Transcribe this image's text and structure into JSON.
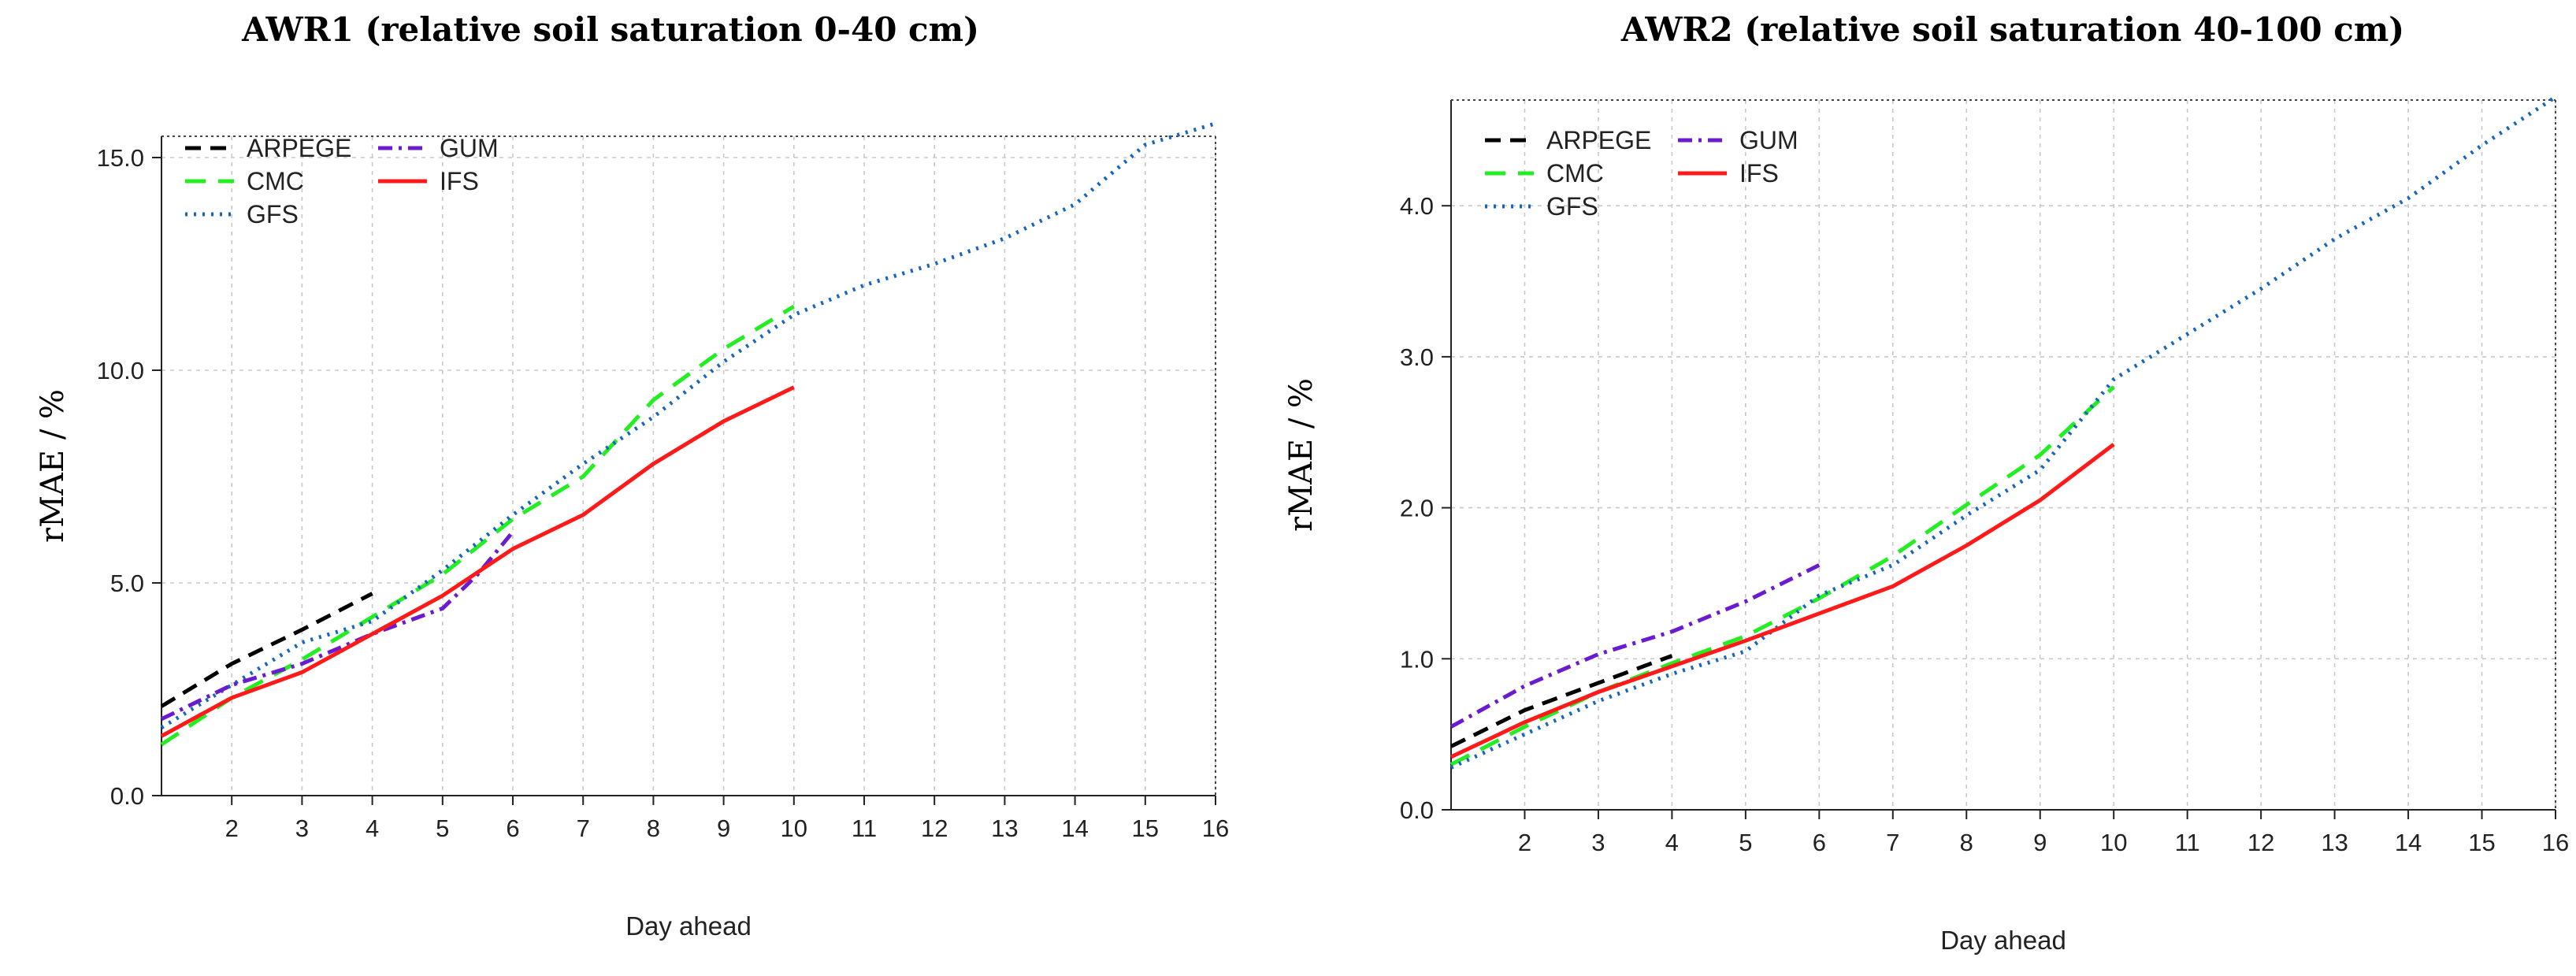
{
  "chart_data": [
    {
      "type": "line",
      "title": "AWR1 (relative soil saturation 0-40 cm)",
      "xlabel": "Day ahead",
      "ylabel": "rMAE / %",
      "xlim": [
        1,
        16
      ],
      "ylim": [
        0,
        15.5
      ],
      "xticks": [
        "2",
        "3",
        "4",
        "5",
        "6",
        "7",
        "8",
        "9",
        "10",
        "11",
        "12",
        "13",
        "14",
        "15",
        "16"
      ],
      "yticks": [
        "0.0",
        "5.0",
        "10.0",
        "15.0"
      ],
      "legend_position": "top-left",
      "series": [
        {
          "name": "ARPEGE",
          "color": "#000000",
          "dash": "20 12",
          "x": [
            1,
            2,
            3,
            4
          ],
          "values": [
            2.1,
            3.1,
            3.9,
            4.75
          ]
        },
        {
          "name": "CMC",
          "color": "#22ee22",
          "dash": "26 16",
          "x": [
            1,
            2,
            3,
            4,
            5,
            6,
            7,
            8,
            9,
            10
          ],
          "values": [
            1.2,
            2.3,
            3.2,
            4.2,
            5.2,
            6.5,
            7.5,
            9.3,
            10.5,
            11.5
          ]
        },
        {
          "name": "GFS",
          "color": "#1565c0",
          "dash": "3 8",
          "x": [
            1,
            2,
            3,
            4,
            5,
            6,
            7,
            8,
            9,
            10,
            11,
            12,
            13,
            14,
            15,
            16
          ],
          "values": [
            1.6,
            2.6,
            3.6,
            4.1,
            5.3,
            6.6,
            7.8,
            8.9,
            10.2,
            11.3,
            12.0,
            12.5,
            13.1,
            13.9,
            15.3,
            15.8
          ]
        },
        {
          "name": "GUM",
          "color": "#6a1bd0",
          "dash": "18 8 4 8",
          "x": [
            1,
            2,
            3,
            4,
            5,
            5.5,
            6
          ],
          "values": [
            1.8,
            2.6,
            3.1,
            3.8,
            4.4,
            5.2,
            6.2
          ]
        },
        {
          "name": "IFS",
          "color": "#ff1a1a",
          "dash": "",
          "x": [
            1,
            2,
            3,
            4,
            5,
            6,
            7,
            8,
            9,
            10
          ],
          "values": [
            1.4,
            2.3,
            2.9,
            3.8,
            4.7,
            5.8,
            6.6,
            7.8,
            8.8,
            9.6
          ]
        }
      ]
    },
    {
      "type": "line",
      "title": "AWR2 (relative soil saturation 40-100 cm)",
      "xlabel": "Day ahead",
      "ylabel": "rMAE / %",
      "xlim": [
        1,
        16
      ],
      "ylim": [
        0,
        4.7
      ],
      "xticks": [
        "2",
        "3",
        "4",
        "5",
        "6",
        "7",
        "8",
        "9",
        "10",
        "11",
        "12",
        "13",
        "14",
        "15",
        "16"
      ],
      "yticks": [
        "0.0",
        "1.0",
        "2.0",
        "3.0",
        "4.0"
      ],
      "legend_position": "top-left",
      "series": [
        {
          "name": "ARPEGE",
          "color": "#000000",
          "dash": "20 12",
          "x": [
            1,
            2,
            3,
            4
          ],
          "values": [
            0.42,
            0.66,
            0.84,
            1.02
          ]
        },
        {
          "name": "CMC",
          "color": "#22ee22",
          "dash": "26 16",
          "x": [
            1,
            2,
            3,
            4,
            5,
            6,
            7,
            8,
            9,
            10
          ],
          "values": [
            0.3,
            0.55,
            0.78,
            0.97,
            1.15,
            1.4,
            1.68,
            2.02,
            2.35,
            2.8
          ]
        },
        {
          "name": "GFS",
          "color": "#1565c0",
          "dash": "3 8",
          "x": [
            1,
            2,
            3,
            4,
            5,
            6,
            7,
            8,
            9,
            10,
            11,
            12,
            13,
            14,
            15,
            16
          ],
          "values": [
            0.28,
            0.5,
            0.72,
            0.9,
            1.05,
            1.42,
            1.62,
            1.95,
            2.25,
            2.85,
            3.15,
            3.45,
            3.78,
            4.05,
            4.4,
            4.72
          ]
        },
        {
          "name": "GUM",
          "color": "#6a1bd0",
          "dash": "18 8 4 8",
          "x": [
            1,
            2,
            3,
            4,
            5,
            6
          ],
          "values": [
            0.55,
            0.82,
            1.03,
            1.18,
            1.38,
            1.62
          ]
        },
        {
          "name": "IFS",
          "color": "#ff1a1a",
          "dash": "",
          "x": [
            1,
            2,
            3,
            4,
            5,
            6,
            7,
            8,
            9,
            10
          ],
          "values": [
            0.35,
            0.58,
            0.78,
            0.95,
            1.12,
            1.3,
            1.48,
            1.75,
            2.05,
            2.42
          ]
        }
      ]
    }
  ]
}
